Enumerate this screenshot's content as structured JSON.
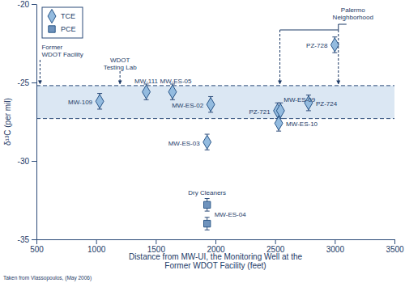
{
  "chart_data": {
    "type": "scatter",
    "xlabel": [
      "Distance from MW-UI, the Monitoring Well at the",
      "Former WDOT Facility (feet)"
    ],
    "ylabel": "δ¹³C (per mil)",
    "source": "Taken from Vlassopoulos, (May 2006)",
    "xlim": [
      500,
      3500
    ],
    "xticks": [
      500,
      1000,
      1500,
      2000,
      2500,
      3000,
      3500
    ],
    "ylim": [
      -35,
      -20
    ],
    "yticks": [
      -35,
      -30,
      -25,
      -20
    ],
    "grid": false,
    "legend": "upper left",
    "band": [
      -27.3,
      -25.2
    ],
    "series": [
      {
        "name": "TCE",
        "color": "#93bbdf",
        "marker": "diamond",
        "x": [
          1030,
          1420,
          1640,
          1960,
          1930,
          2520,
          2545,
          2530,
          2780,
          3000
        ],
        "values": [
          -26.2,
          -25.6,
          -25.6,
          -26.4,
          -28.8,
          -26.8,
          -26.8,
          -27.6,
          -26.3,
          -22.6
        ],
        "errors": [
          0.5,
          0.5,
          0.5,
          0.5,
          0.5,
          0.5,
          0.5,
          0.5,
          0.5,
          0.5
        ],
        "labels": [
          "MW-109",
          "MW-111",
          "MW-ES-05",
          "MW-ES-02",
          "MW-ES-03",
          "PZ-721",
          "MW-ES-09",
          "MW-ES-10",
          "PZ-724",
          "PZ-728"
        ]
      },
      {
        "name": "PCE",
        "color": "#6f93bd",
        "marker": "square",
        "x": [
          1930,
          1930
        ],
        "values": [
          -32.8,
          -34.0
        ],
        "errors": [
          0.4,
          0.4
        ],
        "labels": [
          "MW-ES-04",
          null
        ]
      }
    ],
    "annotations": [
      {
        "text": [
          "Former",
          "WDOT Facility"
        ],
        "x": 530
      },
      {
        "text": [
          "WDOT",
          "Testing Lab"
        ],
        "x": 1200
      },
      {
        "text": [
          "Palermo",
          "Neighborhood"
        ],
        "x": [
          2540,
          3030
        ]
      },
      {
        "text": [
          "Dry Cleaners"
        ],
        "x": 1930
      }
    ]
  }
}
